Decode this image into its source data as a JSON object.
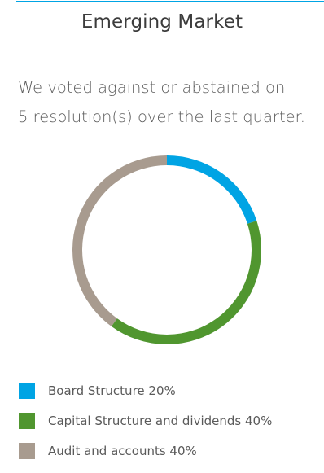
{
  "header": {
    "title": "Emerging Market"
  },
  "summary": {
    "line1": "We voted against or abstained on",
    "line2": "5 resolution(s) over the last quarter."
  },
  "chart_data": {
    "type": "pie",
    "donut": true,
    "categories": [
      "Board Structure",
      "Capital Structure and dividends",
      "Audit and accounts"
    ],
    "values": [
      20,
      40,
      40
    ],
    "colors": [
      "#00a4e4",
      "#50962f",
      "#a89b8f"
    ],
    "legend_position": "bottom",
    "legend": [
      {
        "label": "Board Structure 20%",
        "color": "#00a4e4"
      },
      {
        "label": "Capital Structure and dividends 40%",
        "color": "#50962f"
      },
      {
        "label": "Audit and accounts 40%",
        "color": "#a89b8f"
      }
    ]
  }
}
